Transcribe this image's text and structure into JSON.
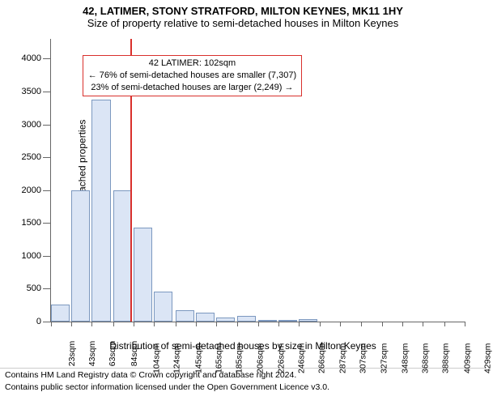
{
  "title_line1": "42, LATIMER, STONY STRATFORD, MILTON KEYNES, MK11 1HY",
  "title_line2": "Size of property relative to semi-detached houses in Milton Keynes",
  "chart": {
    "type": "histogram",
    "ylabel": "Number of semi-detached properties",
    "xlabel": "Distribution of semi-detached houses by size in Milton Keynes",
    "ylim": [
      0,
      4300
    ],
    "yticks": [
      0,
      500,
      1000,
      1500,
      2000,
      2500,
      3000,
      3500,
      4000
    ],
    "xticks": [
      "23sqm",
      "43sqm",
      "63sqm",
      "84sqm",
      "104sqm",
      "124sqm",
      "145sqm",
      "165sqm",
      "185sqm",
      "206sqm",
      "226sqm",
      "246sqm",
      "266sqm",
      "287sqm",
      "307sqm",
      "327sqm",
      "348sqm",
      "368sqm",
      "388sqm",
      "409sqm",
      "429sqm"
    ],
    "bars": {
      "x_centers_sqm": [
        23,
        43,
        63,
        84,
        104,
        124,
        145,
        165,
        185,
        206,
        226,
        246,
        266
      ],
      "values": [
        260,
        2000,
        3380,
        2000,
        1430,
        460,
        170,
        130,
        60,
        90,
        20,
        20,
        40
      ],
      "bar_fill": "#dbe5f5",
      "bar_border": "#7c98bf",
      "bar_width_frac": 0.92
    },
    "refline": {
      "x_sqm": 102,
      "color": "#d9302c"
    },
    "annotation": {
      "lines": [
        "42 LATIMER: 102sqm",
        "← 76% of semi-detached houses are smaller (7,307)",
        "23% of semi-detached houses are larger (2,249) →"
      ],
      "border": "#d9302c",
      "bg": "#ffffff",
      "x_sqm": 165,
      "y_value": 4050
    },
    "background": "#ffffff",
    "axis_color": "#666666",
    "text_color": "#000000",
    "font_family": "Arial",
    "title_fontsize": 13,
    "label_fontsize": 12,
    "tick_fontsize": 11
  },
  "footer": {
    "line1": "Contains HM Land Registry data © Crown copyright and database right 2024.",
    "line2": "Contains public sector information licensed under the Open Government Licence v3.0."
  }
}
